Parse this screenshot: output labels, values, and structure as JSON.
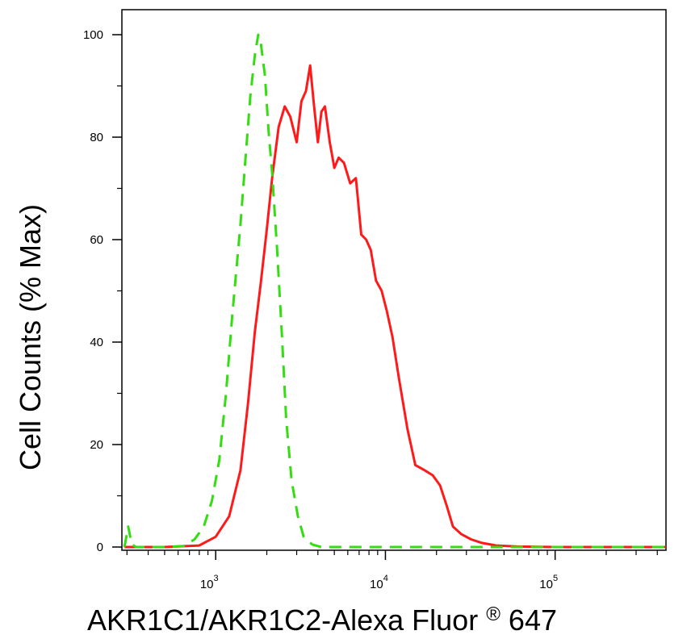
{
  "chart_data": {
    "type": "line",
    "title": "",
    "xlabel": "AKR1C1/AKR1C2-Alexa Fluor",
    "xlabel_mark": "®",
    "xlabel_suffix": " 647",
    "ylabel": "Cell Counts (% Max)",
    "x_scale": "log",
    "xlim": [
      280,
      450000
    ],
    "ylim": [
      0,
      100
    ],
    "grid": false,
    "legend": "none",
    "y_ticks": [
      {
        "value": 0,
        "label": "0"
      },
      {
        "value": 20,
        "label": "20"
      },
      {
        "value": 40,
        "label": "40"
      },
      {
        "value": 60,
        "label": "60"
      },
      {
        "value": 80,
        "label": "80"
      },
      {
        "value": 100,
        "label": "100"
      }
    ],
    "x_ticks": [
      {
        "value": 1000,
        "base": "10",
        "exp": "3"
      },
      {
        "value": 10000,
        "base": "10",
        "exp": "4"
      },
      {
        "value": 100000,
        "base": "10",
        "exp": "5"
      }
    ],
    "series": [
      {
        "color": "#ff1a1a",
        "dash": "solid",
        "x": [
          290,
          500,
          800,
          1000,
          1200,
          1400,
          1550,
          1700,
          1850,
          2000,
          2150,
          2350,
          2550,
          2750,
          3000,
          3200,
          3400,
          3600,
          3800,
          4000,
          4200,
          4400,
          4700,
          5000,
          5300,
          5700,
          6200,
          6700,
          7200,
          7700,
          8200,
          8800,
          9500,
          10200,
          11000,
          12000,
          13500,
          15000,
          17000,
          19000,
          21000,
          23000,
          25000,
          28000,
          32000,
          37000,
          45000,
          60000,
          100000,
          450000
        ],
        "y": [
          0,
          0,
          0.3,
          2,
          6,
          15,
          28,
          42,
          52,
          62,
          72,
          82,
          86,
          84,
          79,
          87,
          89,
          94,
          86,
          79,
          85,
          86,
          79,
          74,
          76,
          75,
          71,
          72,
          61,
          60,
          58,
          52,
          50,
          46,
          41,
          33,
          23,
          16,
          15,
          14,
          12,
          8,
          4,
          2.5,
          1.5,
          0.8,
          0.3,
          0.1,
          0,
          0
        ]
      },
      {
        "color": "#33dd11",
        "dash": "dashed",
        "x": [
          290,
          305,
          320,
          340,
          400,
          500,
          650,
          750,
          850,
          950,
          1050,
          1150,
          1250,
          1400,
          1500,
          1600,
          1700,
          1780,
          1850,
          1950,
          2050,
          2150,
          2300,
          2450,
          2600,
          2800,
          3050,
          3300,
          3700,
          4200,
          5000,
          450000
        ],
        "y": [
          0,
          4,
          0.5,
          0,
          0,
          0,
          0.2,
          1.5,
          4,
          9,
          17,
          30,
          45,
          63,
          76,
          88,
          96,
          100,
          98,
          92,
          81,
          73,
          58,
          42,
          25,
          13,
          6,
          2,
          0.5,
          0,
          0,
          0
        ]
      }
    ]
  }
}
